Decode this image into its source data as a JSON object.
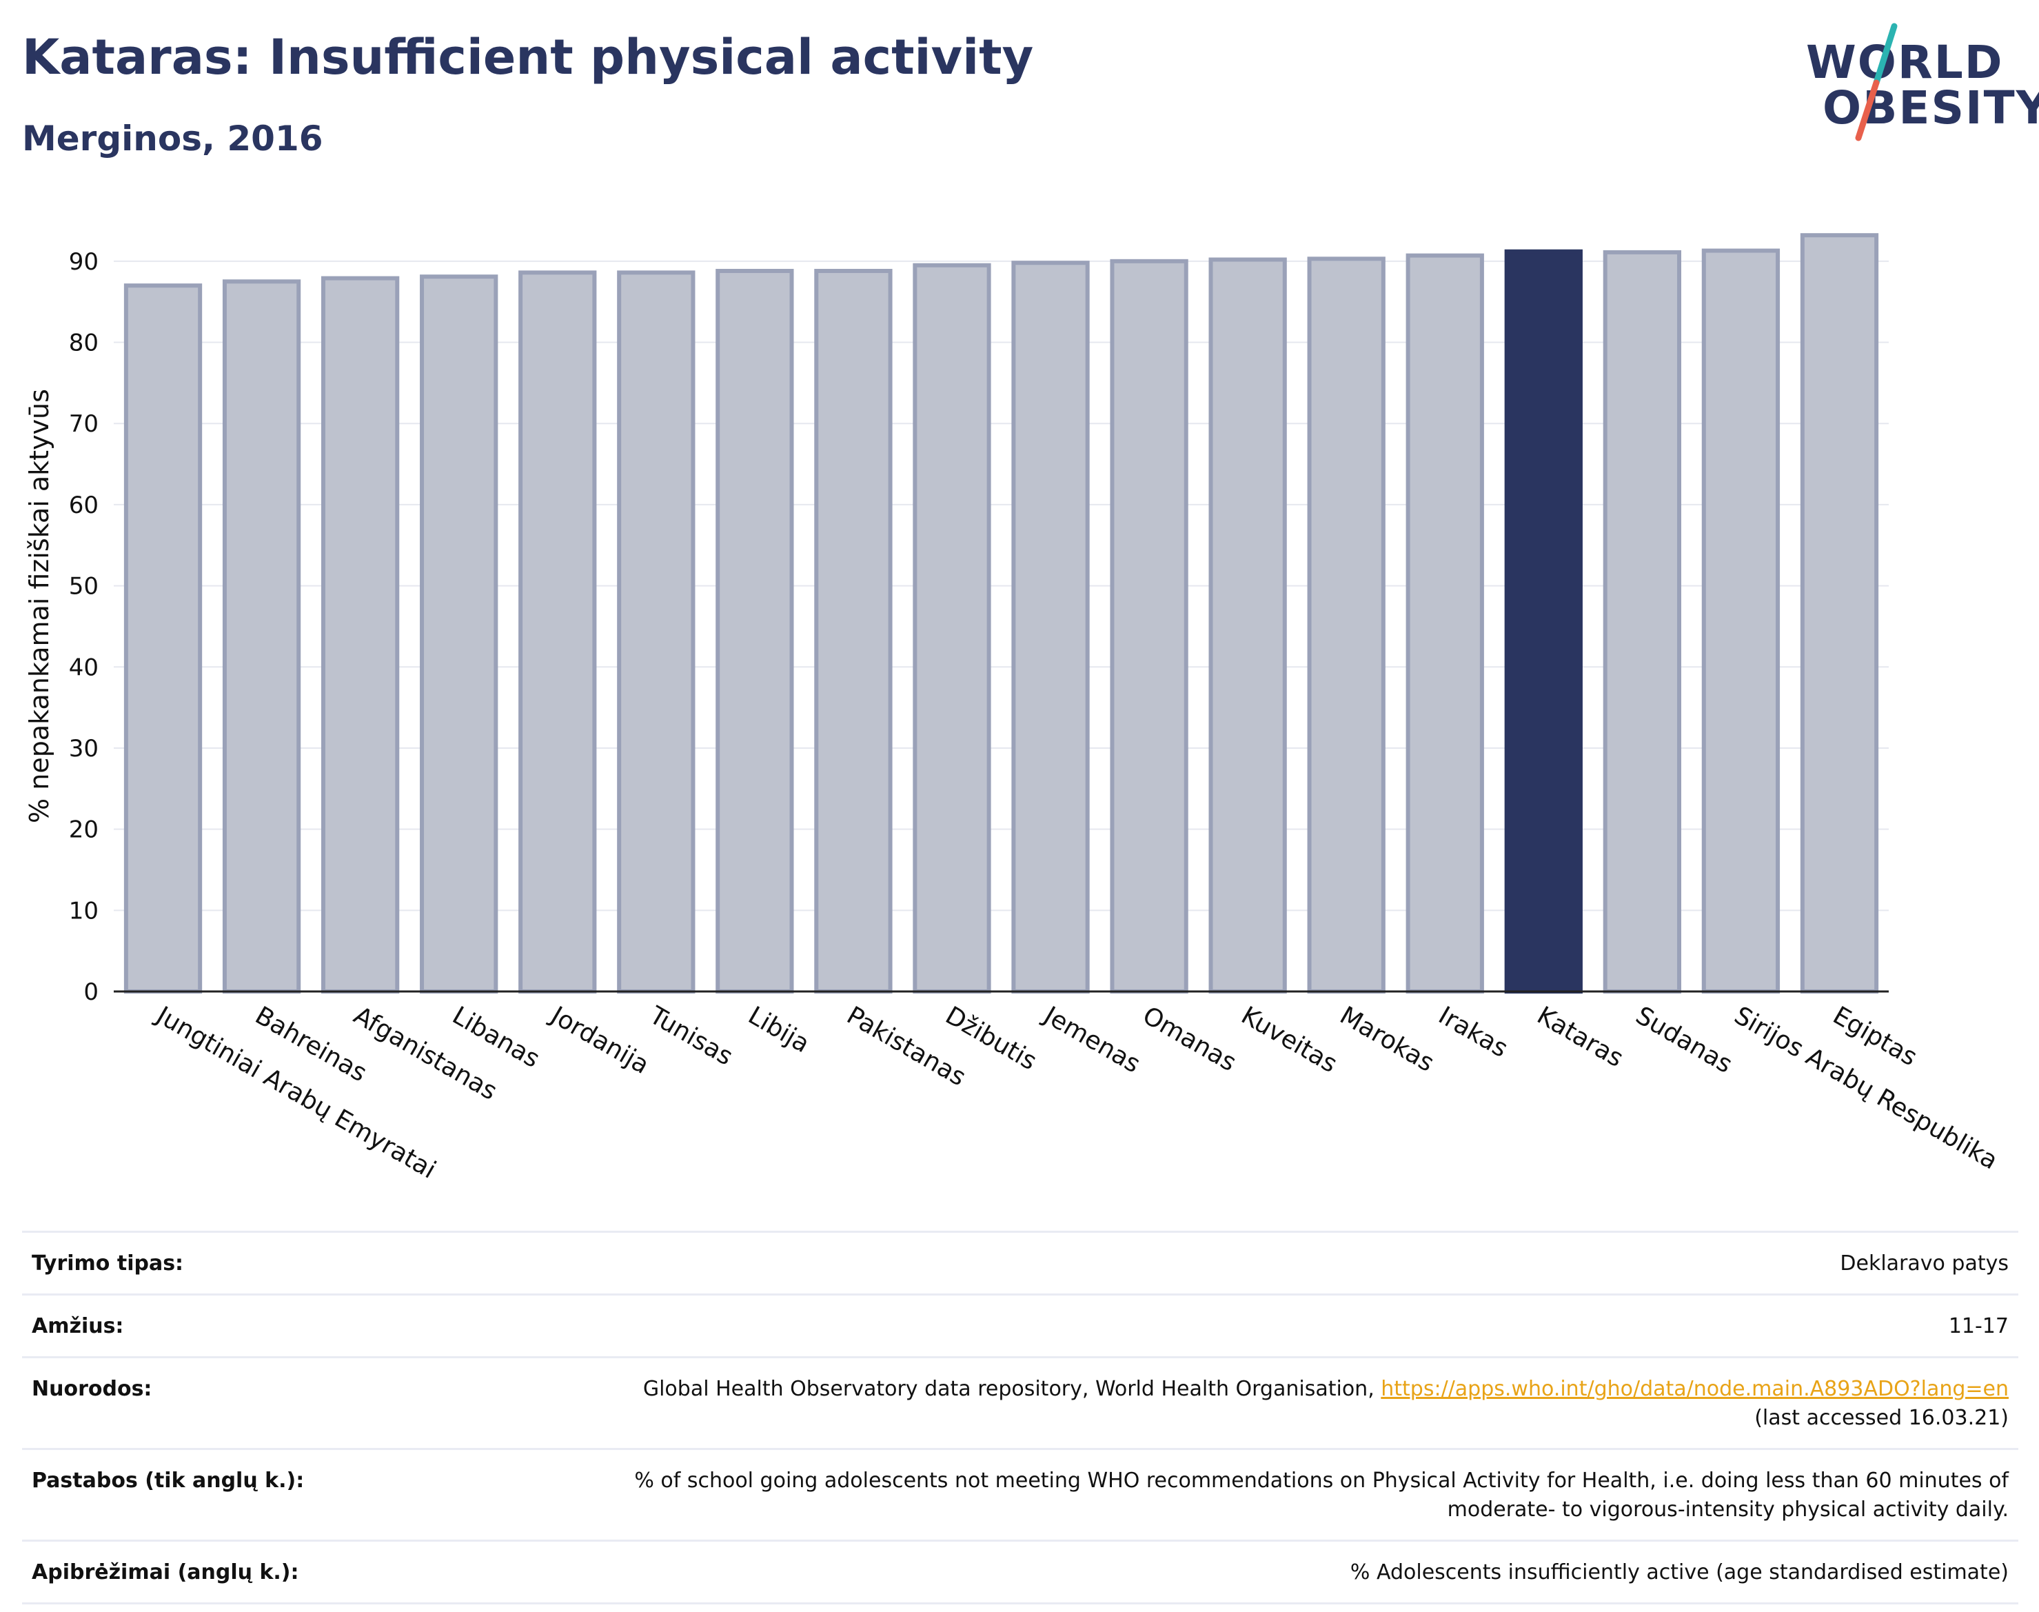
{
  "title": "Kataras: Insufficient physical activity",
  "subtitle": "Merginos, 2016",
  "logo": {
    "line1": "WORLD",
    "line2": "OBESITY",
    "slash_colors": [
      "#2bb3b1",
      "#e8604c"
    ]
  },
  "colors": {
    "highlight": "#2a3560",
    "bar_fill": "#bec2ce",
    "bar_edge": "#9aa1b8",
    "text": "#111111",
    "title": "#2a3560",
    "link": "#e8a317"
  },
  "chart_data": {
    "type": "bar",
    "ylabel": "% nepakankamai fiziškai aktyvūs",
    "xlabel": "",
    "ylim": [
      0,
      95
    ],
    "yticks": [
      0,
      10,
      20,
      30,
      40,
      50,
      60,
      70,
      80,
      90
    ],
    "grid": true,
    "highlight": "Kataras",
    "categories": [
      "Jungtiniai Arabų Emyratai",
      "Bahreinas",
      "Afganistanas",
      "Libanas",
      "Jordanija",
      "Tunisas",
      "Libija",
      "Pakistanas",
      "Džibutis",
      "Jemenas",
      "Omanas",
      "Kuveitas",
      "Marokas",
      "Irakas",
      "Kataras",
      "Sudanas",
      "Sirijos Arabų Respublika",
      "Egiptas"
    ],
    "values": [
      87.0,
      87.5,
      87.9,
      88.1,
      88.6,
      88.6,
      88.8,
      88.8,
      89.5,
      89.8,
      90.0,
      90.2,
      90.3,
      90.7,
      91.2,
      91.1,
      91.3,
      93.2
    ]
  },
  "info": [
    {
      "label": "Tyrimo tipas:",
      "value": "Deklaravo patys"
    },
    {
      "label": "Amžius:",
      "value": "11-17"
    },
    {
      "label": "Nuorodos:",
      "value": "Global Health Observatory data repository, World Health Organisation, ",
      "link": "https://apps.who.int/gho/data/node.main.A893ADO?lang=en",
      "value2": "(last accessed 16.03.21)"
    },
    {
      "label": "Pastabos (tik anglų k.):",
      "value": "% of school going adolescents not meeting WHO recommendations on Physical Activity for Health, i.e. doing less than 60 minutes of",
      "value2": "moderate- to vigorous-intensity physical activity daily."
    },
    {
      "label": "Apibrėžimai (anglų k.):",
      "value": "% Adolescents insufficiently active (age standardised estimate)"
    }
  ]
}
